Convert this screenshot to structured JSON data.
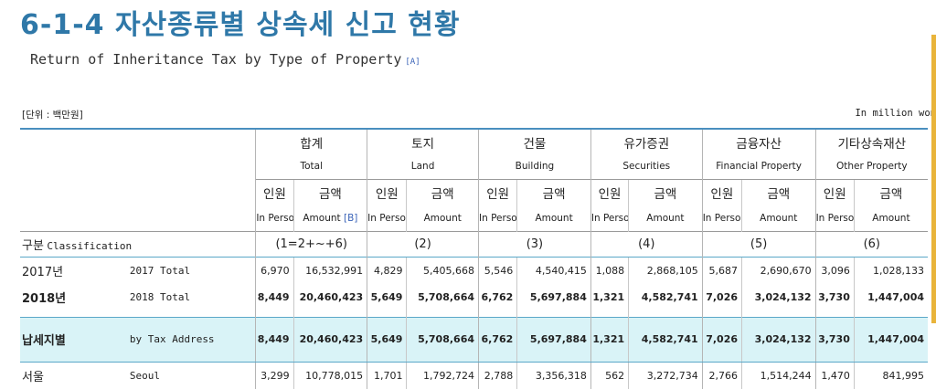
{
  "title": "6-1-4 자산종류별 상속세 신고 현황",
  "subtitle": "Return of Inheritance Tax by Type of Property",
  "subtitle_ref": "[A]",
  "unit_ko": "[단위 : 백만원]",
  "unit_en": "In million won",
  "header": {
    "classification_ko": "구분",
    "classification_en": "Classification",
    "groups": [
      {
        "ko": "합계",
        "en": "Total",
        "num": "(1=2+~+6)"
      },
      {
        "ko": "토지",
        "en": "Land",
        "num": "(2)"
      },
      {
        "ko": "건물",
        "en": "Building",
        "num": "(3)"
      },
      {
        "ko": "유가증권",
        "en": "Securities",
        "num": "(4)"
      },
      {
        "ko": "금융자산",
        "en": "Financial Property",
        "num": "(5)"
      },
      {
        "ko": "기타상속재산",
        "en": "Other Property",
        "num": "(6)"
      }
    ],
    "person_ko": "인원",
    "amount_ko": "금액",
    "person_en": "In Person",
    "amount_en": "Amount",
    "amount_ref": "[B]"
  },
  "rows": [
    {
      "ko": "2017년",
      "en": "2017 Total",
      "values": [
        "6,970",
        "16,532,991",
        "4,829",
        "5,405,668",
        "5,546",
        "4,540,415",
        "1,088",
        "2,868,105",
        "5,687",
        "2,690,670",
        "3,096",
        "1,028,133"
      ]
    },
    {
      "ko": "2018년",
      "en": "2018 Total",
      "values": [
        "8,449",
        "20,460,423",
        "5,649",
        "5,708,664",
        "6,762",
        "5,697,884",
        "1,321",
        "4,582,741",
        "7,026",
        "3,024,132",
        "3,730",
        "1,447,004"
      ]
    },
    {
      "ko": "납세지별",
      "en": "by Tax Address",
      "values": [
        "8,449",
        "20,460,423",
        "5,649",
        "5,708,664",
        "6,762",
        "5,697,884",
        "1,321",
        "4,582,741",
        "7,026",
        "3,024,132",
        "3,730",
        "1,447,004"
      ]
    },
    {
      "ko": "서울",
      "en": "Seoul",
      "values": [
        "3,299",
        "10,778,015",
        "1,701",
        "1,792,724",
        "2,788",
        "3,356,318",
        "562",
        "3,272,734",
        "2,766",
        "1,514,244",
        "1,470",
        "841,995"
      ]
    }
  ],
  "accent_color": "#2f78a8",
  "highlight_color": "#d9f3f7"
}
